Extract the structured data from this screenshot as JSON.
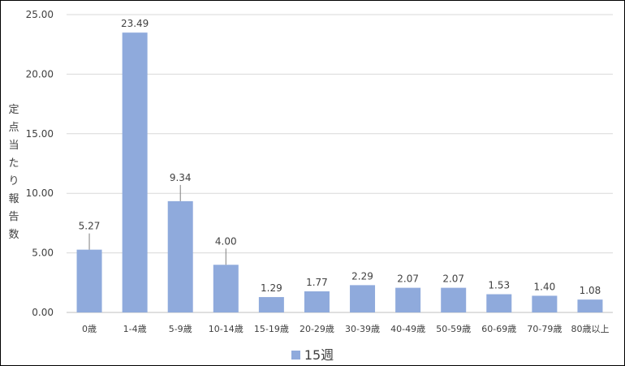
{
  "chart_data": {
    "type": "bar",
    "ylabel": "定点当たり報告数",
    "ylim": [
      0,
      25
    ],
    "yticks": [
      "0.00",
      "5.00",
      "10.00",
      "15.00",
      "20.00",
      "25.00"
    ],
    "grid": true,
    "legend_position": "bottom",
    "categories": [
      "0歳",
      "1-4歳",
      "5-9歳",
      "10-14歳",
      "15-19歳",
      "20-29歳",
      "30-39歳",
      "40-49歳",
      "50-59歳",
      "60-69歳",
      "70-79歳",
      "80歳以上"
    ],
    "series": [
      {
        "name": "15週",
        "color": "#8faadc",
        "values": [
          5.27,
          23.49,
          9.34,
          4.0,
          1.29,
          1.77,
          2.29,
          2.07,
          2.07,
          1.53,
          1.4,
          1.08
        ],
        "labels": [
          "5.27",
          "23.49",
          "9.34",
          "4.00",
          "1.29",
          "1.77",
          "2.29",
          "2.07",
          "2.07",
          "1.53",
          "1.40",
          "1.08"
        ]
      }
    ]
  }
}
